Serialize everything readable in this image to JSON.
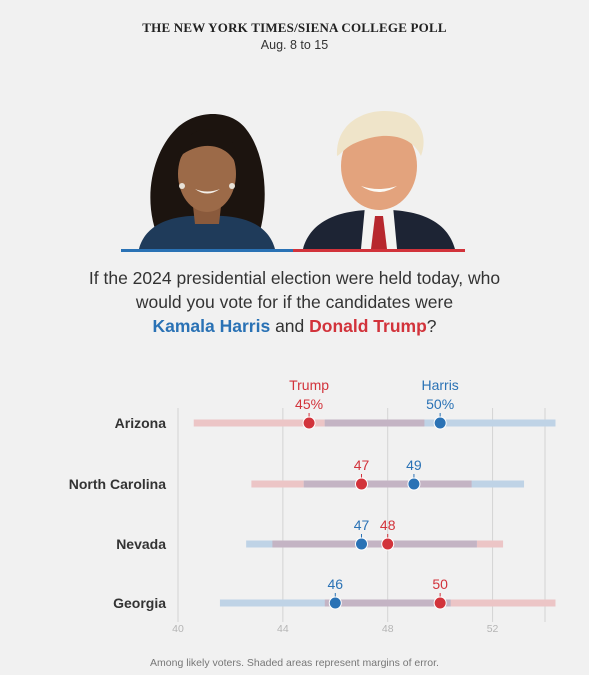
{
  "header": {
    "title": "THE NEW YORK TIMES/SIENA COLLEGE POLL",
    "dates": "Aug. 8 to 15"
  },
  "colors": {
    "harris": "#2a72b5",
    "trump": "#d2333b",
    "harris_range": "#bfd3e6",
    "trump_range": "#ecc5c6",
    "overlap_range": "#c4b4c4",
    "grid": "#d4d4d4",
    "tick": "#b5b5b5",
    "label": "#333333"
  },
  "question": {
    "line1": "If the 2024 presidential election were held today, who",
    "line2": "would you vote for if the candidates were",
    "harris_name": "Kamala Harris",
    "joiner": " and ",
    "trump_name": "Donald Trump",
    "end": "?"
  },
  "chart_data": {
    "type": "dot-range",
    "xlim": [
      40,
      54
    ],
    "xticks": [
      40,
      44,
      48,
      52
    ],
    "series": [
      {
        "name": "Trump",
        "key": "trump"
      },
      {
        "name": "Harris",
        "key": "harris"
      }
    ],
    "states": [
      {
        "state": "Arizona",
        "trump": 45,
        "trump_label": "45%",
        "trump_range": [
          40.6,
          49.4
        ],
        "harris": 50,
        "harris_label": "50%",
        "harris_range": [
          45.6,
          54.4
        ]
      },
      {
        "state": "North Carolina",
        "trump": 47,
        "trump_label": "47",
        "trump_range": [
          42.8,
          51.2
        ],
        "harris": 49,
        "harris_label": "49",
        "harris_range": [
          44.8,
          53.2
        ]
      },
      {
        "state": "Nevada",
        "trump": 48,
        "trump_label": "48",
        "trump_range": [
          43.6,
          52.4
        ],
        "harris": 47,
        "harris_label": "47",
        "harris_range": [
          42.6,
          51.4
        ]
      },
      {
        "state": "Georgia",
        "trump": 50,
        "trump_label": "50",
        "trump_range": [
          45.6,
          54.4
        ],
        "harris": 46,
        "harris_label": "46",
        "harris_range": [
          41.6,
          50.4
        ]
      }
    ]
  },
  "footnote": "Among likely voters. Shaded areas represent margins of error."
}
